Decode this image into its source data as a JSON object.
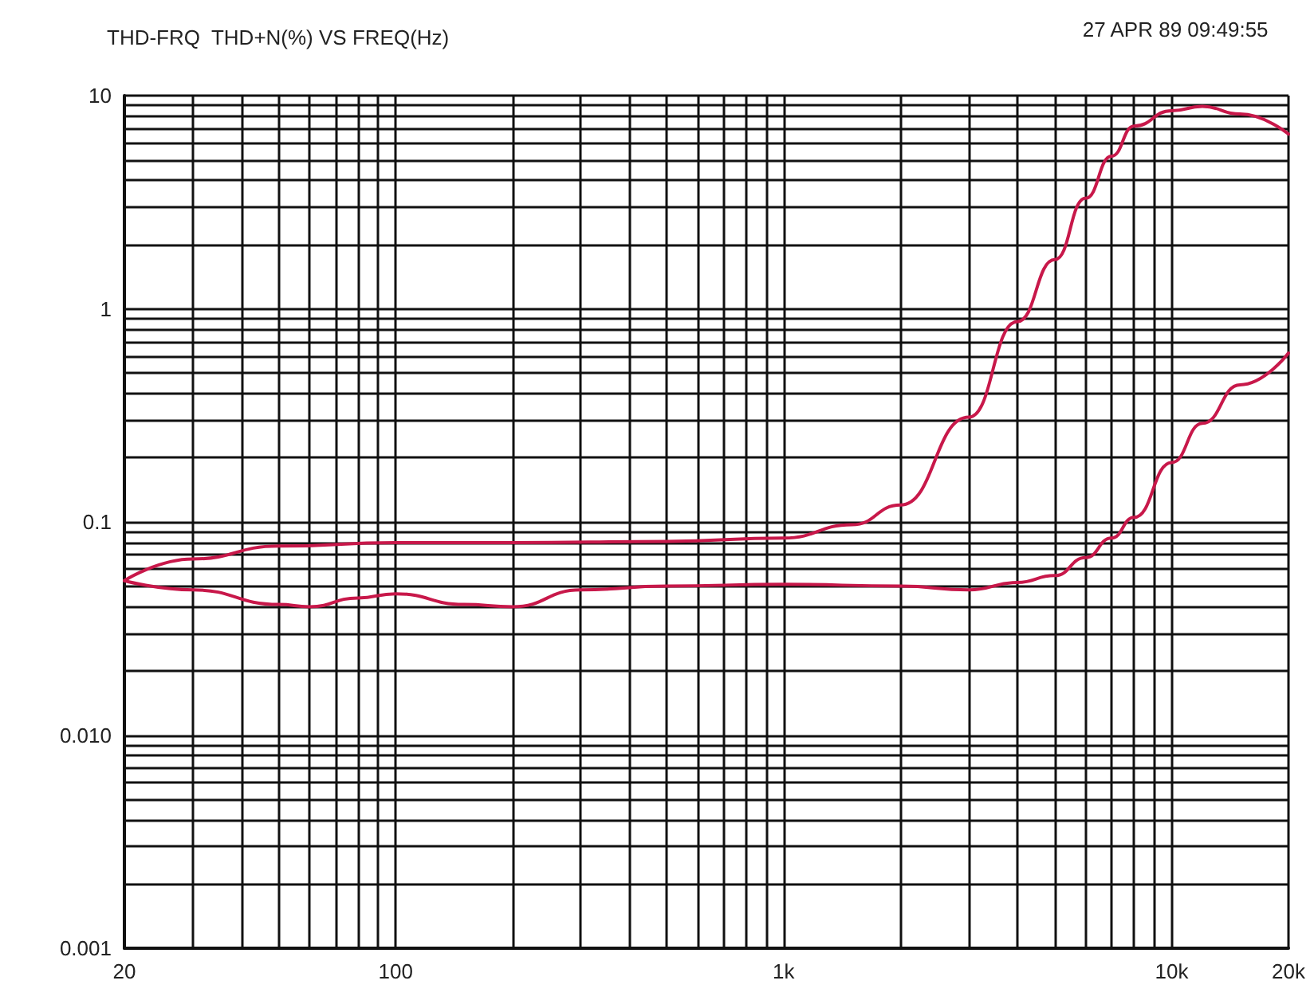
{
  "chart_data": {
    "type": "line",
    "title": "THD-FRQ  THD+N(%) VS FREQ(Hz)",
    "annotations": [
      "27 APR 89 09:49:55"
    ],
    "log": "xy",
    "grid": true,
    "marker": "none",
    "line_style": "solid",
    "xlim": [
      20,
      20000
    ],
    "ylim": [
      0.001,
      10
    ],
    "xticks": [
      20,
      {
        "value": 30,
        "label": null
      },
      {
        "value": 40,
        "label": null
      },
      {
        "value": 50,
        "label": null
      },
      {
        "value": 60,
        "label": null
      },
      {
        "value": 70,
        "label": null
      },
      {
        "value": 80,
        "label": null
      },
      {
        "value": 90,
        "label": null
      },
      100,
      {
        "value": 200,
        "label": null
      },
      {
        "value": 300,
        "label": null
      },
      {
        "value": 400,
        "label": null
      },
      {
        "value": 500,
        "label": null
      },
      {
        "value": 600,
        "label": null
      },
      {
        "value": 700,
        "label": null
      },
      {
        "value": 800,
        "label": null
      },
      {
        "value": 900,
        "label": null
      },
      {
        "value": 1000,
        "label": "1k"
      },
      {
        "value": 2000,
        "label": null
      },
      {
        "value": 3000,
        "label": null
      },
      {
        "value": 4000,
        "label": null
      },
      {
        "value": 5000,
        "label": null
      },
      {
        "value": 6000,
        "label": null
      },
      {
        "value": 7000,
        "label": null
      },
      {
        "value": 8000,
        "label": null
      },
      {
        "value": 9000,
        "label": null
      },
      {
        "value": 10000,
        "label": "10k"
      },
      {
        "value": 20000,
        "label": "20k"
      }
    ],
    "yticks": [
      0.001,
      {
        "value": 0.002,
        "label": null
      },
      {
        "value": 0.003,
        "label": null
      },
      {
        "value": 0.004,
        "label": null
      },
      {
        "value": 0.005,
        "label": null
      },
      {
        "value": 0.006,
        "label": null
      },
      {
        "value": 0.007,
        "label": null
      },
      {
        "value": 0.008,
        "label": null
      },
      {
        "value": 0.009,
        "label": null
      },
      {
        "value": 0.01,
        "label": "0.010"
      },
      {
        "value": 0.02,
        "label": null
      },
      {
        "value": 0.03,
        "label": null
      },
      {
        "value": 0.04,
        "label": null
      },
      {
        "value": 0.05,
        "label": null
      },
      {
        "value": 0.06,
        "label": null
      },
      {
        "value": 0.07,
        "label": null
      },
      {
        "value": 0.08,
        "label": null
      },
      {
        "value": 0.09,
        "label": null
      },
      0.1,
      {
        "value": 0.2,
        "label": null
      },
      {
        "value": 0.3,
        "label": null
      },
      {
        "value": 0.4,
        "label": null
      },
      {
        "value": 0.5,
        "label": null
      },
      {
        "value": 0.6,
        "label": null
      },
      {
        "value": 0.7,
        "label": null
      },
      {
        "value": 0.8,
        "label": null
      },
      {
        "value": 0.9,
        "label": null
      },
      1,
      {
        "value": 2,
        "label": null
      },
      {
        "value": 3,
        "label": null
      },
      {
        "value": 4,
        "label": null
      },
      {
        "value": 5,
        "label": null
      },
      {
        "value": 6,
        "label": null
      },
      {
        "value": 7,
        "label": null
      },
      {
        "value": 8,
        "label": null
      },
      {
        "value": 9,
        "label": null
      },
      10
    ],
    "series": [
      {
        "color": "#c8184a",
        "x": [
          20,
          30,
          50,
          100,
          200,
          500,
          1000,
          1500,
          2000,
          3000,
          4000,
          5000,
          6000,
          7000,
          8000,
          10000,
          12000,
          15000,
          20000
        ],
        "values": [
          0.053,
          0.067,
          0.077,
          0.08,
          0.08,
          0.081,
          0.084,
          0.097,
          0.12,
          0.31,
          0.87,
          1.7,
          3.3,
          5.2,
          7.2,
          8.5,
          8.9,
          8.2,
          6.6
        ]
      },
      {
        "color": "#c8184a",
        "x": [
          20,
          30,
          50,
          60,
          80,
          100,
          150,
          200,
          300,
          500,
          1000,
          2000,
          3000,
          4000,
          5000,
          6000,
          7000,
          8000,
          10000,
          12000,
          15000,
          20000
        ],
        "values": [
          0.053,
          0.048,
          0.041,
          0.04,
          0.044,
          0.046,
          0.041,
          0.04,
          0.048,
          0.05,
          0.051,
          0.05,
          0.048,
          0.052,
          0.056,
          0.068,
          0.084,
          0.105,
          0.19,
          0.29,
          0.44,
          0.62
        ]
      }
    ]
  }
}
